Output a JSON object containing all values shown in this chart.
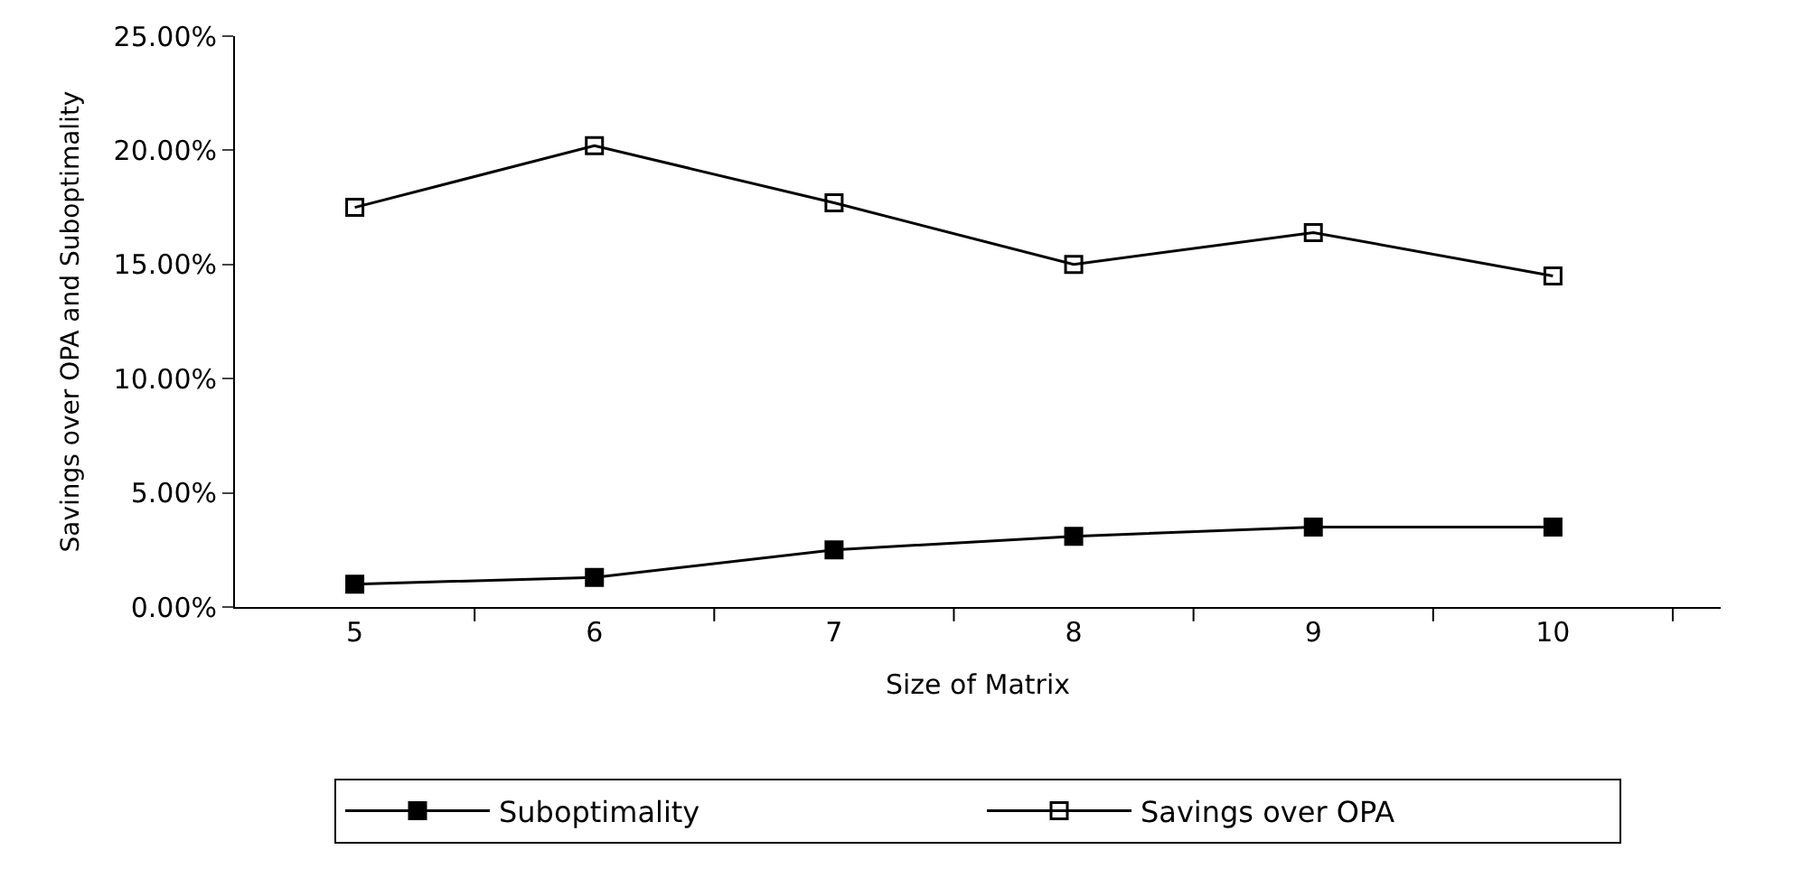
{
  "chart_data": {
    "type": "line",
    "xlabel": "Size of Matrix",
    "ylabel": "Savings over OPA and Suboptimality",
    "categories": [
      "5",
      "6",
      "7",
      "8",
      "9",
      "10"
    ],
    "series": [
      {
        "name": "Suboptimality",
        "color": "#000000",
        "marker": "square",
        "values": [
          1.0,
          1.3,
          2.5,
          3.1,
          3.5,
          3.5
        ]
      },
      {
        "name": "Savings over OPA",
        "color": "#000000",
        "marker": "square",
        "values": [
          17.5,
          20.2,
          17.7,
          15.0,
          16.4,
          14.5
        ]
      }
    ],
    "ylim": [
      0,
      25
    ],
    "yticks": [
      {
        "value": 0,
        "label": "0.00%"
      },
      {
        "value": 5,
        "label": "5.00%"
      },
      {
        "value": 10,
        "label": "10.00%"
      },
      {
        "value": 15,
        "label": "15.00%"
      },
      {
        "value": 20,
        "label": "20.00%"
      },
      {
        "value": 25,
        "label": "25.00%"
      }
    ],
    "legend": "bottom",
    "line_style": "solid"
  }
}
